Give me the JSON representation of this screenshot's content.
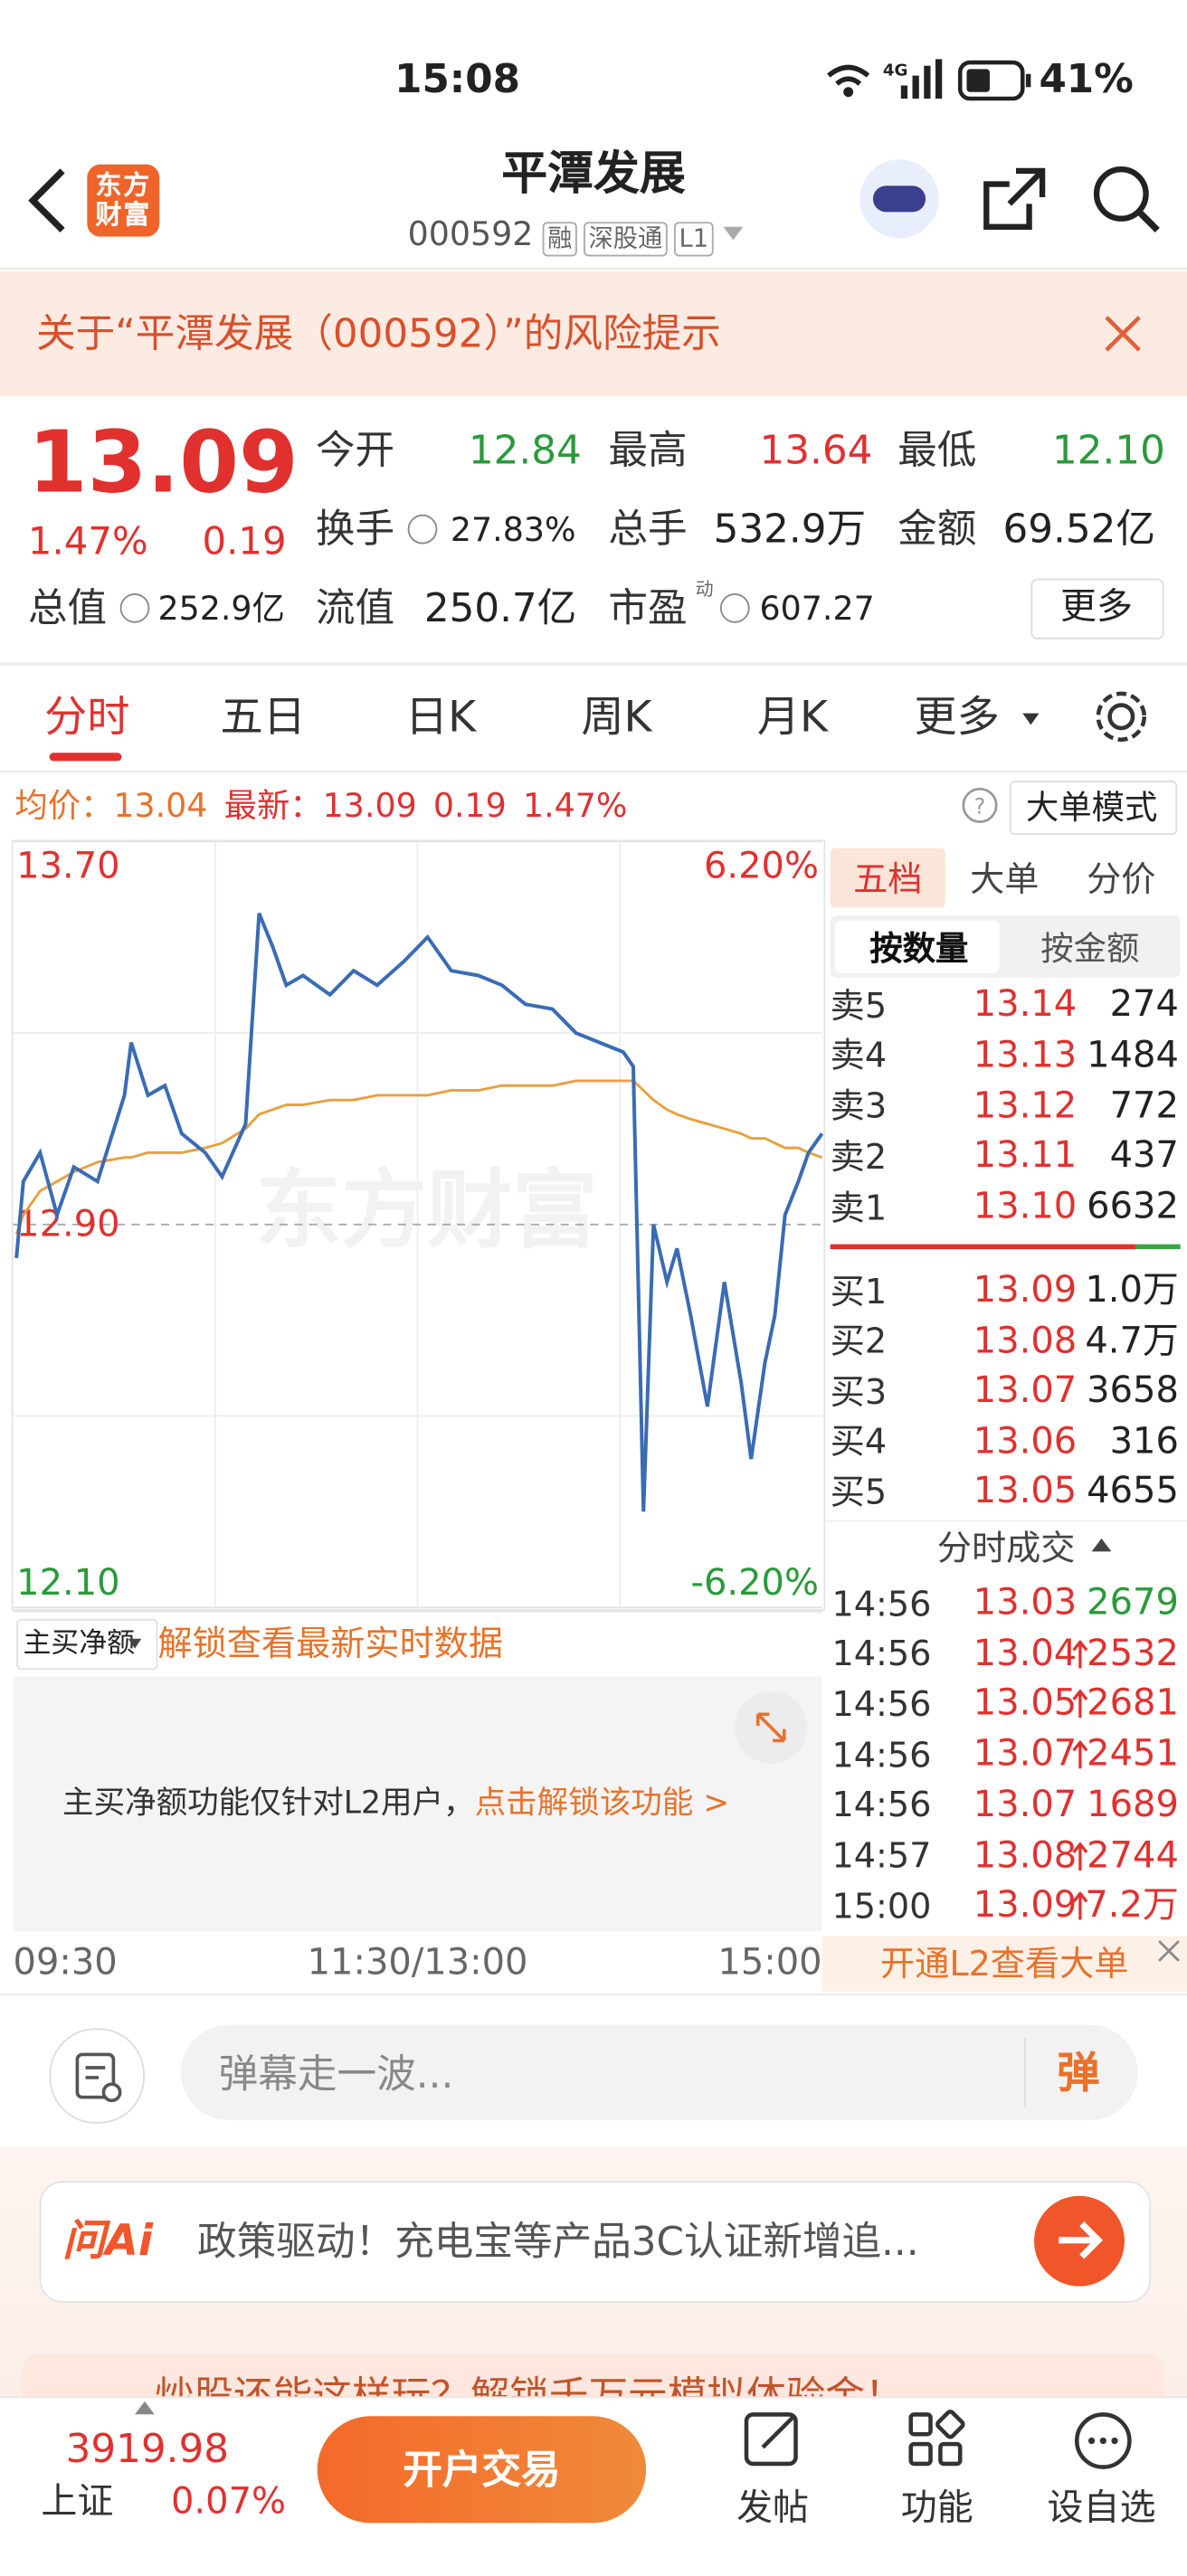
{
  "status": {
    "time": "15:08",
    "network": "4G",
    "battery": "41%"
  },
  "header": {
    "title": "平潭发展",
    "code": "000592",
    "tags": [
      "融",
      "深股通",
      "L1"
    ],
    "logo": "东方财富"
  },
  "risk_notice": "关于“平潭发展（000592）”的风险提示",
  "quote": {
    "price": "13.09",
    "pct": "1.47%",
    "change": "0.19",
    "more": "更多",
    "fields": [
      {
        "label": "今开",
        "value": "12.84",
        "color": "#2a9a3a"
      },
      {
        "label": "最高",
        "value": "13.64",
        "color": "#e0312f"
      },
      {
        "label": "最低",
        "value": "12.10",
        "color": "#2a9a3a"
      },
      {
        "label": "换手",
        "value": "27.83%",
        "color": "#222222"
      },
      {
        "label": "总手",
        "value": "532.9万",
        "color": "#222222"
      },
      {
        "label": "金额",
        "value": "69.52亿",
        "color": "#222222"
      },
      {
        "label": "总值",
        "value": "252.9亿",
        "color": "#222222"
      },
      {
        "label": "流值",
        "value": "250.7亿",
        "color": "#222222"
      },
      {
        "label": "市盈",
        "sup": "动",
        "value": "607.27",
        "color": "#222222"
      }
    ]
  },
  "tabs": [
    "分时",
    "五日",
    "日K",
    "周K",
    "月K",
    "更多"
  ],
  "info_bar": {
    "avg_label": "均价：",
    "avg": "13.04",
    "latest_label": "最新：",
    "latest": "13.09",
    "change": "0.19",
    "pct": "1.47%",
    "mode": "大单模式"
  },
  "chart_data": {
    "type": "line",
    "watermark": "东方财富",
    "x": [
      1,
      3,
      8,
      13,
      18,
      25,
      33,
      35,
      40,
      45,
      50,
      57,
      62,
      69,
      73,
      77,
      81,
      86,
      94,
      101,
      108,
      116,
      123,
      130,
      138,
      145,
      152,
      160,
      167,
      174,
      181,
      184,
      187,
      190,
      194,
      197,
      201,
      206,
      211,
      216,
      219,
      223,
      226,
      229,
      233,
      236,
      240
    ],
    "xlim": [
      0,
      240
    ],
    "xticks": [
      {
        "value": 0,
        "label": "09:30"
      },
      {
        "value": 120,
        "label": "11:30/13:00"
      },
      {
        "value": 240,
        "label": "15:00"
      }
    ],
    "ylim": [
      12.1,
      13.7
    ],
    "yticks": [
      {
        "value": 13.7,
        "label": "13.70"
      },
      {
        "value": 12.9,
        "label": "12.90"
      },
      {
        "value": 12.1,
        "label": "12.10"
      }
    ],
    "y2lim": [
      -6.2,
      6.2
    ],
    "y2ticks": [
      {
        "value": 6.2,
        "label": "6.20%"
      },
      {
        "value": -6.2,
        "label": "-6.20%"
      }
    ],
    "series": [
      {
        "color": "#3a6bb5",
        "values": [
          12.83,
          12.99,
          13.05,
          12.92,
          13.02,
          12.99,
          13.17,
          13.28,
          13.17,
          13.19,
          13.09,
          13.05,
          13.0,
          13.11,
          13.55,
          13.48,
          13.4,
          13.42,
          13.38,
          13.43,
          13.4,
          13.45,
          13.5,
          13.43,
          13.42,
          13.4,
          13.36,
          13.35,
          13.3,
          13.28,
          13.26,
          13.23,
          12.3,
          12.9,
          12.78,
          12.85,
          12.71,
          12.52,
          12.78,
          12.57,
          12.41,
          12.61,
          12.71,
          12.92,
          12.99,
          13.05,
          13.09
        ]
      },
      {
        "color": "#e8a040",
        "values": [
          12.88,
          12.92,
          12.97,
          12.99,
          13.01,
          13.03,
          13.04,
          13.04,
          13.05,
          13.05,
          13.05,
          13.06,
          13.07,
          13.1,
          13.13,
          13.14,
          13.15,
          13.15,
          13.16,
          13.16,
          13.17,
          13.17,
          13.17,
          13.18,
          13.18,
          13.19,
          13.19,
          13.19,
          13.2,
          13.2,
          13.2,
          13.2,
          13.18,
          13.16,
          13.14,
          13.13,
          13.12,
          13.11,
          13.1,
          13.09,
          13.08,
          13.08,
          13.07,
          13.06,
          13.06,
          13.05,
          13.04
        ]
      }
    ]
  },
  "order_book": {
    "tabs": [
      "五档",
      "大单",
      "分价"
    ],
    "subtabs": [
      "按数量",
      "按金额"
    ],
    "asks": [
      {
        "label": "卖5",
        "price": "13.14",
        "volume": "274"
      },
      {
        "label": "卖4",
        "price": "13.13",
        "volume": "1484"
      },
      {
        "label": "卖3",
        "price": "13.12",
        "volume": "772"
      },
      {
        "label": "卖2",
        "price": "13.11",
        "volume": "437"
      },
      {
        "label": "卖1",
        "price": "13.10",
        "volume": "6632"
      }
    ],
    "bids": [
      {
        "label": "买1",
        "price": "13.09",
        "volume": "1.0万"
      },
      {
        "label": "买2",
        "price": "13.08",
        "volume": "4.7万"
      },
      {
        "label": "买3",
        "price": "13.07",
        "volume": "3658"
      },
      {
        "label": "买4",
        "price": "13.06",
        "volume": "316"
      },
      {
        "label": "买5",
        "price": "13.05",
        "volume": "4655"
      }
    ]
  },
  "trades": {
    "title": "分时成交",
    "rows": [
      {
        "time": "14:56",
        "price": "13.03",
        "volume": "2679",
        "side": "sell"
      },
      {
        "time": "14:56",
        "price": "13.04",
        "volume": "2532",
        "side": "buy",
        "up": true
      },
      {
        "time": "14:56",
        "price": "13.05",
        "volume": "2681",
        "side": "buy",
        "up": true
      },
      {
        "time": "14:56",
        "price": "13.07",
        "volume": "2451",
        "side": "buy",
        "up": true
      },
      {
        "time": "14:56",
        "price": "13.07",
        "volume": "1689",
        "side": "buy"
      },
      {
        "time": "14:57",
        "price": "13.08",
        "volume": "2744",
        "side": "buy",
        "up": true
      },
      {
        "time": "15:00",
        "price": "13.09",
        "volume": "7.2万",
        "side": "buy",
        "up": true
      }
    ]
  },
  "lower_panel": {
    "selector": "主买净额",
    "unlock": "解锁查看最新实时数据",
    "notice": "主买净额功能仅针对L2用户，",
    "link": "点击解锁该功能 >"
  },
  "l2_banner": "开通L2查看大单",
  "comment": {
    "placeholder": "弹幕走一波...",
    "button": "弹"
  },
  "ai": {
    "label": "问Ai",
    "text": "政策驱动！充电宝等产品3C认证新增追..."
  },
  "promo": "炒股还能这样玩？解锁千万元模拟体验金！",
  "bottom": {
    "index_value": "3919.98",
    "index_name": "上证",
    "index_pct": "0.07%",
    "trade": "开户交易",
    "actions": [
      "发帖",
      "功能",
      "设自选"
    ]
  }
}
